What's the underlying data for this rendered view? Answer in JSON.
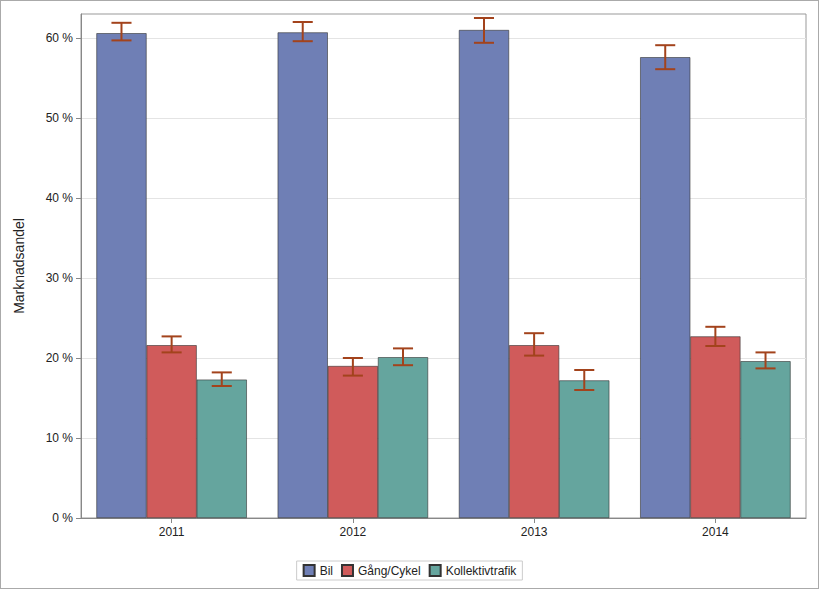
{
  "chart_data": {
    "type": "bar",
    "y_label": "Marknadsandel",
    "categories": [
      "2011",
      "2012",
      "2013",
      "2014"
    ],
    "series": [
      {
        "name": "Bil",
        "color": "#6f7fb5",
        "values": [
          60.6,
          60.7,
          61.0,
          57.6
        ],
        "error_low": [
          59.7,
          59.6,
          59.4,
          56.1
        ],
        "error_high": [
          61.9,
          62.0,
          62.5,
          59.1
        ]
      },
      {
        "name": "Gång/Cykel",
        "color": "#d05b5b",
        "values": [
          21.6,
          19.0,
          21.6,
          22.7
        ],
        "error_low": [
          20.7,
          17.8,
          20.3,
          21.5
        ],
        "error_high": [
          22.7,
          20.0,
          23.1,
          23.9
        ]
      },
      {
        "name": "Kollektivtrafik",
        "color": "#65a59e",
        "values": [
          17.3,
          20.1,
          17.2,
          19.6
        ],
        "error_low": [
          16.5,
          19.1,
          16.0,
          18.7
        ],
        "error_high": [
          18.2,
          21.2,
          18.5,
          20.7
        ]
      }
    ],
    "ylim": [
      0,
      63
    ],
    "yticks": [
      {
        "value": 0,
        "label": "0 %"
      },
      {
        "value": 10,
        "label": "10 %"
      },
      {
        "value": 20,
        "label": "20 %"
      },
      {
        "value": 30,
        "label": "30 %"
      },
      {
        "value": 40,
        "label": "40 %"
      },
      {
        "value": 50,
        "label": "50 %"
      },
      {
        "value": 60,
        "label": "60 %"
      }
    ],
    "grid": true,
    "legend": "bottom"
  }
}
